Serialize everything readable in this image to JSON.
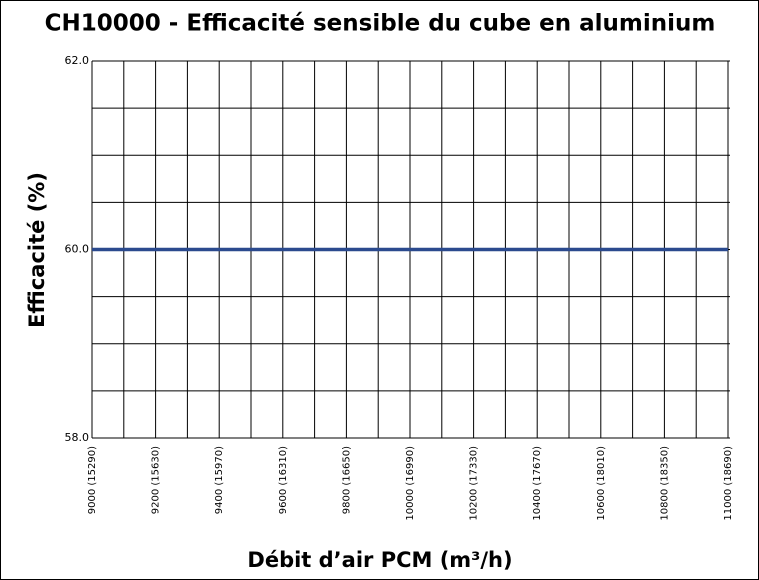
{
  "chart_data": {
    "type": "line",
    "title": "CH10000 - Efficacité sensible du cube en aluminium",
    "x_label": "Débit d’air PCM (m³/h)",
    "y_label": "Efficacité (%)",
    "x": [
      9000,
      11000
    ],
    "series": [
      {
        "name": "Efficacité",
        "color": "#2b4a8e",
        "values": [
          60,
          60
        ]
      }
    ],
    "xlim": [
      9000,
      11000
    ],
    "xticks": [
      {
        "value": 9000,
        "label": "9000 (15290)"
      },
      {
        "value": 9200,
        "label": "9200 (15630)"
      },
      {
        "value": 9400,
        "label": "9400 (15970)"
      },
      {
        "value": 9600,
        "label": "9600 (16310)"
      },
      {
        "value": 9800,
        "label": "9800 (16650)"
      },
      {
        "value": 10000,
        "label": "10000 (16990)"
      },
      {
        "value": 10200,
        "label": "10200 (17330)"
      },
      {
        "value": 10400,
        "label": "10400 (17670)"
      },
      {
        "value": 10600,
        "label": "10600 (18010)"
      },
      {
        "value": 10800,
        "label": "10800 (18350)"
      },
      {
        "value": 11000,
        "label": "11000 (18690)"
      }
    ],
    "xminorticks": [
      9100,
      9300,
      9500,
      9700,
      9900,
      10100,
      10300,
      10500,
      10700,
      10900
    ],
    "ylim": [
      58,
      62
    ],
    "yticks": [
      {
        "value": 58,
        "label": "58.0"
      },
      {
        "value": 60,
        "label": "60.0"
      },
      {
        "value": 62,
        "label": "62.0"
      }
    ],
    "yminorticks": [
      58.5,
      59,
      59.5,
      60.5,
      61,
      61.5
    ],
    "grid": true
  }
}
